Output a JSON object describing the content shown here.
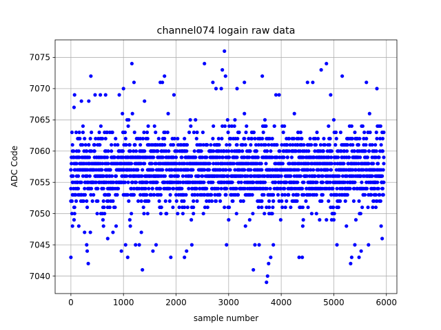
{
  "chart_data": {
    "type": "scatter",
    "title": "channel074 logain raw data",
    "xlabel": "sample number",
    "ylabel": "ADC Code",
    "xlim": [
      -300,
      6200
    ],
    "ylim": [
      7037.2,
      7077.8
    ],
    "xticks": [
      0,
      1000,
      2000,
      3000,
      4000,
      5000,
      6000
    ],
    "yticks": [
      7040,
      7045,
      7050,
      7055,
      7060,
      7065,
      7070,
      7075
    ],
    "grid": true,
    "marker_color": "#0000ff",
    "series": [
      {
        "x_range": [
          0,
          5950
        ],
        "dense_range": [
          7047,
          7066
        ],
        "points": [
          [
            0,
            7043
          ],
          [
            30,
            7048
          ],
          [
            60,
            7067
          ],
          [
            70,
            7069
          ],
          [
            150,
            7048
          ],
          [
            200,
            7068
          ],
          [
            260,
            7047
          ],
          [
            300,
            7045
          ],
          [
            310,
            7044
          ],
          [
            330,
            7042
          ],
          [
            340,
            7068
          ],
          [
            380,
            7072
          ],
          [
            460,
            7069
          ],
          [
            560,
            7069
          ],
          [
            660,
            7069
          ],
          [
            700,
            7046
          ],
          [
            800,
            7047
          ],
          [
            920,
            7069
          ],
          [
            960,
            7044
          ],
          [
            1000,
            7070
          ],
          [
            1040,
            7045
          ],
          [
            1080,
            7043
          ],
          [
            1160,
            7074
          ],
          [
            1200,
            7071
          ],
          [
            1230,
            7045
          ],
          [
            1300,
            7045
          ],
          [
            1360,
            7041
          ],
          [
            1400,
            7068
          ],
          [
            1560,
            7044
          ],
          [
            1620,
            7045
          ],
          [
            1700,
            7071
          ],
          [
            1740,
            7071
          ],
          [
            1780,
            7072
          ],
          [
            1900,
            7043
          ],
          [
            1960,
            7069
          ],
          [
            2160,
            7043
          ],
          [
            2200,
            7044
          ],
          [
            2300,
            7045
          ],
          [
            2540,
            7074
          ],
          [
            2700,
            7071
          ],
          [
            2760,
            7070
          ],
          [
            2860,
            7070
          ],
          [
            2880,
            7073
          ],
          [
            2920,
            7076
          ],
          [
            2940,
            7072
          ],
          [
            2960,
            7045
          ],
          [
            3160,
            7070
          ],
          [
            3300,
            7071
          ],
          [
            3470,
            7041
          ],
          [
            3500,
            7045
          ],
          [
            3580,
            7045
          ],
          [
            3640,
            7072
          ],
          [
            3720,
            7039
          ],
          [
            3740,
            7040
          ],
          [
            3760,
            7042
          ],
          [
            3800,
            7043
          ],
          [
            3850,
            7045
          ],
          [
            3900,
            7069
          ],
          [
            3960,
            7069
          ],
          [
            4340,
            7043
          ],
          [
            4400,
            7043
          ],
          [
            4500,
            7071
          ],
          [
            4600,
            7071
          ],
          [
            4760,
            7073
          ],
          [
            4860,
            7074
          ],
          [
            4940,
            7069
          ],
          [
            5060,
            7045
          ],
          [
            5160,
            7072
          ],
          [
            5320,
            7042
          ],
          [
            5340,
            7043
          ],
          [
            5400,
            7045
          ],
          [
            5480,
            7043
          ],
          [
            5520,
            7044
          ],
          [
            5620,
            7071
          ],
          [
            5660,
            7045
          ],
          [
            5820,
            7070
          ],
          [
            5900,
            7048
          ],
          [
            5920,
            7046
          ]
        ]
      }
    ]
  }
}
